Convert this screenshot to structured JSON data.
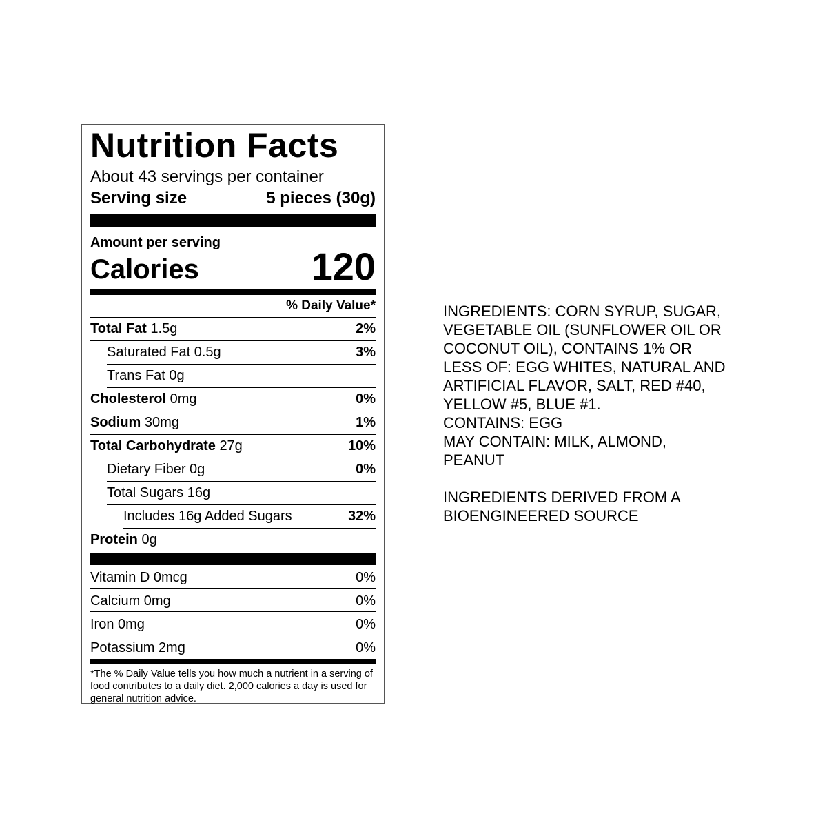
{
  "label": {
    "title": "Nutrition Facts",
    "servings": "About 43 servings per container",
    "serving_size_label": "Serving size",
    "serving_size_value": "5 pieces (30g)",
    "amount_per_serving": "Amount per serving",
    "calories_label": "Calories",
    "calories_value": "120",
    "dv_header": "% Daily Value*",
    "nutrients": [
      {
        "name": "Total Fat",
        "amount": "1.5g",
        "dv": "2%"
      },
      {
        "name": "Saturated Fat",
        "amount": "0.5g",
        "dv": "3%"
      },
      {
        "name": "Trans Fat",
        "amount": "0g",
        "dv": ""
      },
      {
        "name": "Cholesterol",
        "amount": "0mg",
        "dv": "0%"
      },
      {
        "name": "Sodium",
        "amount": "30mg",
        "dv": "1%"
      },
      {
        "name": "Total Carbohydrate",
        "amount": "27g",
        "dv": "10%"
      },
      {
        "name": "Dietary Fiber",
        "amount": "0g",
        "dv": "0%"
      },
      {
        "name": "Total Sugars",
        "amount": "16g",
        "dv": ""
      },
      {
        "name": "Includes 16g Added Sugars",
        "amount": "",
        "dv": "32%"
      },
      {
        "name": "Protein",
        "amount": "0g",
        "dv": ""
      }
    ],
    "vitamins": [
      {
        "text": "Vitamin D 0mcg",
        "dv": "0%"
      },
      {
        "text": "Calcium 0mg",
        "dv": "0%"
      },
      {
        "text": "Iron 0mg",
        "dv": "0%"
      },
      {
        "text": "Potassium 2mg",
        "dv": "0%"
      }
    ],
    "footnote": "*The % Daily Value tells you how much a nutrient in a serving of food contributes to a daily diet. 2,000 calories a day is used for general nutrition advice."
  },
  "ingredients": {
    "lines": [
      "INGREDIENTS: CORN SYRUP, SUGAR,",
      "VEGETABLE OIL (SUNFLOWER OIL OR",
      "COCONUT OIL), CONTAINS 1% OR",
      "LESS OF: EGG WHITES, NATURAL AND",
      "ARTIFICIAL FLAVOR, SALT, RED #40,",
      "YELLOW #5, BLUE #1.",
      "CONTAINS: EGG",
      "MAY CONTAIN: MILK, ALMOND,",
      "PEANUT"
    ],
    "bioengineered_lines": [
      "INGREDIENTS DERIVED FROM A",
      "BIOENGINEERED SOURCE"
    ]
  }
}
